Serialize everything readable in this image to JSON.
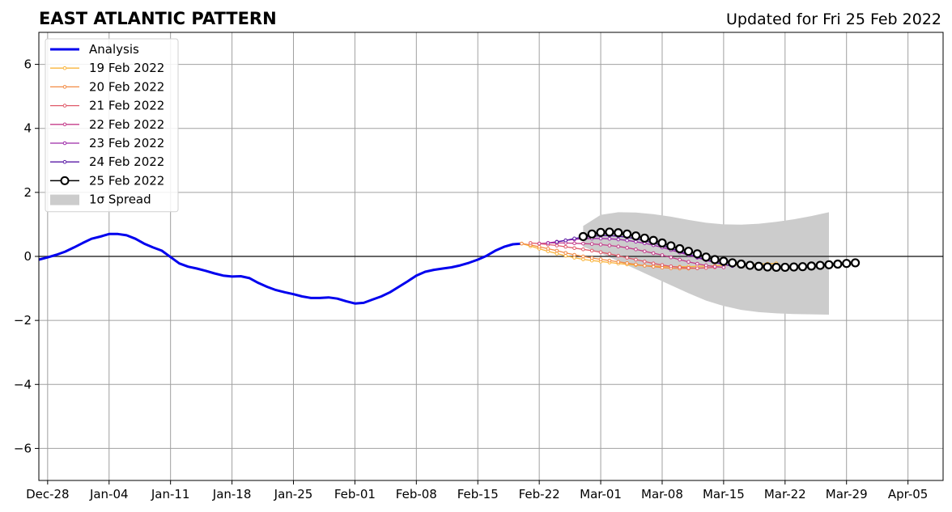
{
  "chart_data": {
    "type": "line",
    "title": "EAST ATLANTIC PATTERN",
    "subtitle": "Updated for Fri 25 Feb 2022",
    "xlabel": "",
    "ylabel": "",
    "ylim": [
      -7,
      7
    ],
    "yticks": [
      -6,
      -4,
      -2,
      0,
      2,
      4,
      6
    ],
    "ytick_labels": [
      "−6",
      "−4",
      "−2",
      "0",
      "2",
      "4",
      "6"
    ],
    "xlim": [
      "2021-12-27",
      "2022-04-09"
    ],
    "xticks": [
      "2021-12-28",
      "2022-01-04",
      "2022-01-11",
      "2022-01-18",
      "2022-01-25",
      "2022-02-01",
      "2022-02-08",
      "2022-02-15",
      "2022-02-22",
      "2022-03-01",
      "2022-03-08",
      "2022-03-15",
      "2022-03-22",
      "2022-03-29",
      "2022-04-05"
    ],
    "xtick_labels": [
      "Dec-28",
      "Jan-04",
      "Jan-11",
      "Jan-18",
      "Jan-25",
      "Feb-01",
      "Feb-08",
      "Feb-15",
      "Feb-22",
      "Mar-01",
      "Mar-08",
      "Mar-15",
      "Mar-22",
      "Mar-29",
      "Apr-05"
    ],
    "grid": true,
    "legend_position": "top-left",
    "analysis": {
      "name": "Analysis",
      "color": "#0000ee",
      "x": [
        "2021-12-27",
        "2021-12-28",
        "2021-12-29",
        "2021-12-30",
        "2021-12-31",
        "2022-01-01",
        "2022-01-02",
        "2022-01-03",
        "2022-01-04",
        "2022-01-05",
        "2022-01-06",
        "2022-01-07",
        "2022-01-08",
        "2022-01-09",
        "2022-01-10",
        "2022-01-11",
        "2022-01-12",
        "2022-01-13",
        "2022-01-14",
        "2022-01-15",
        "2022-01-16",
        "2022-01-17",
        "2022-01-18",
        "2022-01-19",
        "2022-01-20",
        "2022-01-21",
        "2022-01-22",
        "2022-01-23",
        "2022-01-24",
        "2022-01-25",
        "2022-01-26",
        "2022-01-27",
        "2022-01-28",
        "2022-01-29",
        "2022-01-30",
        "2022-01-31",
        "2022-02-01",
        "2022-02-02",
        "2022-02-03",
        "2022-02-04",
        "2022-02-05",
        "2022-02-06",
        "2022-02-07",
        "2022-02-08",
        "2022-02-09",
        "2022-02-10",
        "2022-02-11",
        "2022-02-12",
        "2022-02-13",
        "2022-02-14",
        "2022-02-15",
        "2022-02-16",
        "2022-02-17",
        "2022-02-18",
        "2022-02-19",
        "2022-02-20"
      ],
      "values": [
        -0.1,
        -0.03,
        0.05,
        0.15,
        0.28,
        0.42,
        0.55,
        0.62,
        0.7,
        0.7,
        0.66,
        0.55,
        0.4,
        0.28,
        0.18,
        -0.02,
        -0.22,
        -0.32,
        -0.38,
        -0.45,
        -0.53,
        -0.6,
        -0.63,
        -0.62,
        -0.68,
        -0.83,
        -0.95,
        -1.05,
        -1.12,
        -1.18,
        -1.25,
        -1.3,
        -1.3,
        -1.28,
        -1.32,
        -1.4,
        -1.47,
        -1.45,
        -1.35,
        -1.25,
        -1.12,
        -0.95,
        -0.78,
        -0.6,
        -0.48,
        -0.42,
        -0.38,
        -0.34,
        -0.28,
        -0.2,
        -0.1,
        0.02,
        0.18,
        0.3,
        0.38,
        0.4
      ]
    },
    "forecasts": [
      {
        "name": "19 Feb 2022",
        "color": "#f9b43b",
        "start": "2022-02-20",
        "values": [
          0.4,
          0.32,
          0.24,
          0.16,
          0.09,
          0.02,
          -0.04,
          -0.09,
          -0.13,
          -0.16,
          -0.19,
          -0.22,
          -0.25,
          -0.27,
          -0.29,
          -0.3,
          -0.31,
          -0.32,
          -0.32,
          -0.32,
          -0.31,
          -0.3,
          -0.29,
          -0.28,
          -0.27,
          -0.26,
          -0.25,
          -0.24,
          -0.23,
          -0.22
        ]
      },
      {
        "name": "20 Feb 2022",
        "color": "#f28a43",
        "start": "2022-02-20",
        "values": [
          0.4,
          0.36,
          0.3,
          0.24,
          0.18,
          0.11,
          0.05,
          0,
          -0.05,
          -0.09,
          -0.13,
          -0.17,
          -0.21,
          -0.25,
          -0.29,
          -0.32,
          -0.35,
          -0.37,
          -0.38,
          -0.38,
          -0.37,
          -0.35
        ]
      },
      {
        "name": "21 Feb 2022",
        "color": "#e05a6a",
        "start": "2022-02-21",
        "values": [
          0.42,
          0.4,
          0.37,
          0.34,
          0.3,
          0.26,
          0.22,
          0.18,
          0.13,
          0.08,
          0.02,
          -0.04,
          -0.1,
          -0.16,
          -0.22,
          -0.27,
          -0.31,
          -0.34,
          -0.36,
          -0.37,
          -0.36,
          -0.34
        ]
      },
      {
        "name": "22 Feb 2022",
        "color": "#c43c8a",
        "start": "2022-02-22",
        "values": [
          0.4,
          0.42,
          0.42,
          0.42,
          0.41,
          0.4,
          0.39,
          0.37,
          0.34,
          0.31,
          0.27,
          0.22,
          0.16,
          0.1,
          0.04,
          -0.03,
          -0.1,
          -0.17,
          -0.23,
          -0.28,
          -0.32,
          -0.34
        ]
      },
      {
        "name": "23 Feb 2022",
        "color": "#9c29a8",
        "start": "2022-02-23",
        "values": [
          0.42,
          0.46,
          0.5,
          0.53,
          0.55,
          0.56,
          0.56,
          0.55,
          0.53,
          0.5,
          0.46,
          0.41,
          0.35,
          0.28,
          0.2,
          0.12,
          0.04,
          -0.04,
          -0.12,
          -0.19,
          -0.25,
          -0.3
        ]
      },
      {
        "name": "24 Feb 2022",
        "color": "#5a1aa6",
        "start": "2022-02-24",
        "values": [
          0.45,
          0.5,
          0.56,
          0.6,
          0.63,
          0.65,
          0.65,
          0.63,
          0.6,
          0.55,
          0.49,
          0.42,
          0.34,
          0.25,
          0.16,
          0.07,
          -0.02,
          -0.1,
          -0.18,
          -0.25,
          -0.3
        ]
      },
      {
        "name": "25 Feb 2022",
        "color": "#000000",
        "start": "2022-02-27",
        "values": [
          0.62,
          0.7,
          0.75,
          0.76,
          0.74,
          0.7,
          0.64,
          0.57,
          0.5,
          0.42,
          0.33,
          0.24,
          0.16,
          0.08,
          -0.02,
          -0.1,
          -0.15,
          -0.2,
          -0.24,
          -0.28,
          -0.31,
          -0.33,
          -0.34,
          -0.34,
          -0.33,
          -0.32,
          -0.3,
          -0.28,
          -0.26,
          -0.24,
          -0.22,
          -0.2
        ]
      }
    ],
    "spread": {
      "name": "1σ Spread",
      "color": "#cccccc",
      "x": [
        "2022-02-27",
        "2022-03-01",
        "2022-03-03",
        "2022-03-05",
        "2022-03-07",
        "2022-03-09",
        "2022-03-11",
        "2022-03-13",
        "2022-03-15",
        "2022-03-17",
        "2022-03-19",
        "2022-03-21",
        "2022-03-23",
        "2022-03-25",
        "2022-03-27"
      ],
      "upper": [
        0.95,
        1.3,
        1.38,
        1.37,
        1.32,
        1.24,
        1.14,
        1.05,
        1.0,
        0.99,
        1.02,
        1.08,
        1.16,
        1.26,
        1.38
      ],
      "lower": [
        0.3,
        0.1,
        -0.15,
        -0.4,
        -0.65,
        -0.9,
        -1.15,
        -1.38,
        -1.55,
        -1.67,
        -1.74,
        -1.78,
        -1.8,
        -1.81,
        -1.82
      ]
    }
  }
}
